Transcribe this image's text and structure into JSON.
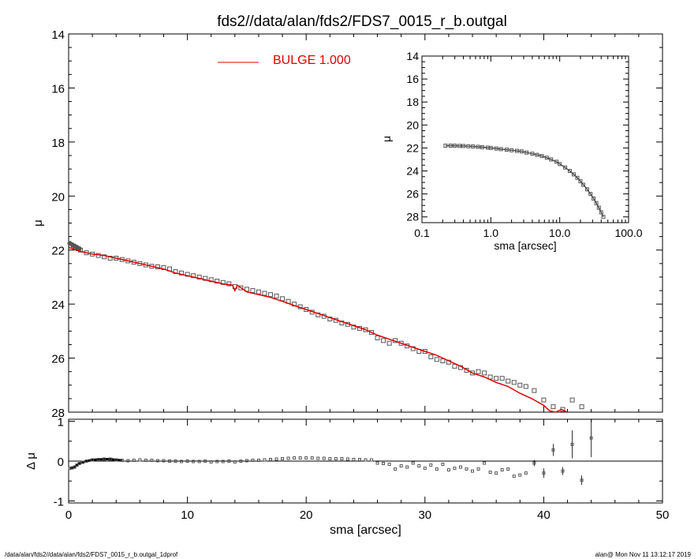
{
  "title": "fds2//data/alan/fds2/FDS7_0015_r_b.outgal",
  "footer": {
    "left": "/data/alan/fds2//data/alan/fds2/FDS7_0015_r_b.outgal_1dprof",
    "right": "alan@  Mon Nov 11 13:12:17 2019"
  },
  "colors": {
    "model": "#e00000",
    "data": "#555555",
    "axes": "#000000"
  },
  "chart_data": [
    {
      "type": "scatter",
      "name": "main",
      "xlabel": "",
      "ylabel": "μ",
      "xlim": [
        0,
        50
      ],
      "ylim": [
        28,
        14
      ],
      "y_inverted": true,
      "yticks": [
        14,
        16,
        18,
        20,
        22,
        24,
        26,
        28
      ],
      "ytick_labels": [
        "14",
        "16",
        "18",
        "20",
        "22",
        "24",
        "26",
        "28"
      ],
      "legend": {
        "label": "BULGE  1.000",
        "position": "top-center"
      },
      "series": [
        {
          "name": "data",
          "style": "squares",
          "x": [
            0.2,
            0.4,
            0.6,
            0.8,
            1.0,
            1.5,
            2.0,
            2.5,
            3.0,
            3.5,
            4.0,
            4.5,
            5.0,
            5.5,
            6.0,
            6.5,
            7.0,
            7.5,
            8.0,
            8.5,
            9.0,
            9.5,
            10.0,
            10.5,
            11.0,
            11.5,
            12.0,
            12.5,
            13.0,
            13.5,
            14.0,
            14.5,
            15.0,
            15.5,
            16.0,
            16.5,
            17.0,
            17.5,
            18.0,
            18.5,
            19.0,
            19.5,
            20.0,
            20.5,
            21.0,
            21.5,
            22.0,
            22.5,
            23.0,
            23.5,
            24.0,
            24.5,
            25.0,
            25.5,
            26.0,
            26.5,
            27.0,
            27.5,
            28.0,
            28.5,
            29.0,
            29.5,
            30.0,
            30.5,
            31.0,
            31.5,
            32.0,
            32.5,
            33.0,
            33.5,
            34.0,
            34.5,
            35.0,
            35.5,
            36.0,
            36.5,
            37.0,
            37.5,
            38.0,
            38.5,
            39.2,
            40.0,
            40.8,
            41.6,
            42.4,
            43.2
          ],
          "y": [
            21.85,
            21.85,
            21.9,
            21.95,
            22.0,
            22.1,
            22.15,
            22.2,
            22.25,
            22.3,
            22.3,
            22.35,
            22.4,
            22.45,
            22.5,
            22.55,
            22.6,
            22.62,
            22.65,
            22.7,
            22.8,
            22.85,
            22.9,
            22.95,
            23.0,
            23.05,
            23.1,
            23.15,
            23.2,
            23.25,
            23.35,
            23.4,
            23.45,
            23.5,
            23.55,
            23.6,
            23.65,
            23.7,
            23.8,
            23.9,
            24.0,
            24.1,
            24.2,
            24.3,
            24.4,
            24.45,
            24.55,
            24.6,
            24.7,
            24.75,
            24.85,
            24.9,
            24.95,
            25.05,
            25.25,
            25.35,
            25.45,
            25.35,
            25.45,
            25.55,
            25.65,
            25.75,
            25.75,
            25.95,
            26.05,
            26.1,
            26.15,
            26.3,
            26.35,
            26.45,
            26.55,
            26.5,
            26.55,
            26.7,
            26.75,
            26.75,
            26.85,
            26.9,
            27.0,
            27.05,
            27.2,
            27.55,
            27.8,
            27.9,
            27.55,
            27.8
          ]
        },
        {
          "name": "model",
          "style": "line",
          "x": [
            0,
            1,
            2,
            3,
            4,
            5,
            6,
            7,
            8,
            9,
            10,
            11,
            12,
            13,
            13.8,
            14.0,
            14.2,
            15,
            16,
            17,
            18,
            19,
            20,
            21,
            22,
            23,
            24,
            25,
            26,
            27,
            28,
            29,
            30,
            31,
            32,
            33,
            34,
            35,
            36,
            37,
            38,
            39,
            40,
            40.5,
            41.0,
            41.5,
            42.0
          ],
          "y": [
            21.9,
            22.05,
            22.15,
            22.2,
            22.3,
            22.4,
            22.5,
            22.6,
            22.7,
            22.85,
            22.95,
            23.05,
            23.15,
            23.25,
            23.3,
            23.5,
            23.3,
            23.55,
            23.65,
            23.75,
            23.9,
            24.05,
            24.2,
            24.35,
            24.5,
            24.65,
            24.8,
            24.95,
            25.15,
            25.3,
            25.45,
            25.6,
            25.75,
            25.9,
            26.1,
            26.3,
            26.55,
            26.7,
            26.9,
            27.05,
            27.3,
            27.5,
            27.75,
            27.95,
            28.1,
            27.9,
            28.2
          ]
        }
      ]
    },
    {
      "type": "scatter",
      "name": "inset",
      "xlabel": "sma [arcsec]",
      "ylabel": "μ",
      "xscale": "log",
      "xlim": [
        0.1,
        100
      ],
      "ylim": [
        28.5,
        14
      ],
      "y_inverted": true,
      "xticks": [
        0.1,
        1,
        10,
        100
      ],
      "xtick_labels": [
        "0.1",
        "1.0",
        "10.0",
        "100.0"
      ],
      "yticks": [
        14,
        16,
        18,
        20,
        22,
        24,
        26,
        28
      ],
      "ytick_labels": [
        "14",
        "16",
        "18",
        "20",
        "22",
        "24",
        "26",
        "28"
      ],
      "series": [
        {
          "name": "data",
          "style": "squares",
          "x": [
            0.22,
            0.26,
            0.3,
            0.35,
            0.4,
            0.47,
            0.55,
            0.65,
            0.75,
            0.9,
            1.0,
            1.2,
            1.4,
            1.7,
            2.0,
            2.4,
            2.8,
            3.3,
            4.0,
            4.7,
            5.5,
            6.5,
            7.5,
            9.0,
            10.0,
            12.0,
            14.0,
            16.0,
            18.0,
            20.0,
            22.0,
            25.0,
            28.0,
            31.0,
            34.0,
            37.0,
            40.0,
            43.0
          ],
          "y": [
            21.8,
            21.8,
            21.8,
            21.82,
            21.83,
            21.85,
            21.87,
            21.9,
            21.93,
            21.97,
            22.0,
            22.05,
            22.1,
            22.15,
            22.2,
            22.25,
            22.3,
            22.4,
            22.5,
            22.6,
            22.7,
            22.85,
            23.0,
            23.2,
            23.4,
            23.7,
            24.0,
            24.3,
            24.6,
            24.9,
            25.2,
            25.6,
            26.0,
            26.4,
            26.8,
            27.2,
            27.6,
            28.0
          ]
        }
      ]
    },
    {
      "type": "scatter",
      "name": "residual",
      "xlabel": "sma [arcsec]",
      "ylabel": "Δ μ",
      "xlim": [
        0,
        50
      ],
      "ylim": [
        -1.05,
        1.05
      ],
      "xticks": [
        0,
        10,
        20,
        30,
        40,
        50
      ],
      "xtick_labels": [
        "0",
        "10",
        "20",
        "30",
        "40",
        "50"
      ],
      "yticks": [
        -1,
        0,
        1
      ],
      "ytick_labels": [
        "-1",
        "0",
        "1"
      ],
      "series": [
        {
          "name": "dense",
          "style": "squares",
          "x": [
            0.1,
            0.3,
            0.5,
            0.7,
            0.9,
            1.2,
            1.5,
            2.0,
            2.5,
            3.0,
            3.5,
            4.0,
            4.5,
            5.0,
            5.5,
            6.0,
            6.5,
            7.0,
            7.5,
            8.0,
            8.5,
            9.0,
            9.5,
            10.0,
            10.5,
            11.0,
            11.5,
            12.0,
            12.5,
            13.0,
            13.5,
            14.0,
            14.5,
            15.0,
            15.5,
            16.0,
            16.5,
            17.0,
            17.5,
            18.0,
            18.5,
            19.0,
            19.5,
            20.0,
            20.5,
            21.0,
            21.5,
            22.0,
            22.5,
            23.0,
            23.5,
            24.0,
            24.5,
            25.0,
            25.5
          ],
          "y": [
            -0.18,
            -0.17,
            -0.15,
            -0.1,
            -0.06,
            -0.03,
            0.0,
            0.03,
            0.04,
            0.05,
            0.05,
            0.03,
            0.02,
            0.01,
            0.02,
            0.03,
            0.02,
            0.02,
            0.01,
            0.01,
            0.0,
            0.0,
            -0.01,
            0.0,
            -0.01,
            -0.01,
            0.0,
            -0.02,
            -0.01,
            -0.01,
            0.0,
            -0.02,
            0.0,
            0.01,
            0.02,
            0.02,
            0.03,
            0.04,
            0.05,
            0.06,
            0.07,
            0.08,
            0.08,
            0.08,
            0.08,
            0.07,
            0.07,
            0.06,
            0.06,
            0.06,
            0.05,
            0.04,
            0.04,
            0.03,
            0.03
          ]
        },
        {
          "name": "sparse",
          "style": "squares",
          "x": [
            26.0,
            26.5,
            27.0,
            27.5,
            28.0,
            28.5,
            29.0,
            29.5,
            30.0,
            30.5,
            31.0,
            31.5,
            32.0,
            32.5,
            33.0,
            33.5,
            34.0,
            34.5,
            35.0,
            35.5,
            36.0,
            36.5,
            37.0,
            37.5,
            38.0,
            38.5
          ],
          "y": [
            -0.05,
            -0.06,
            -0.08,
            -0.2,
            -0.12,
            -0.15,
            -0.05,
            -0.12,
            -0.18,
            -0.1,
            -0.2,
            -0.08,
            -0.22,
            -0.18,
            -0.15,
            -0.2,
            -0.25,
            -0.2,
            -0.05,
            -0.28,
            -0.3,
            -0.22,
            -0.2,
            -0.38,
            -0.35,
            -0.3
          ]
        },
        {
          "name": "errorbars",
          "style": "squares-with-errorbars",
          "x": [
            39.2,
            40.0,
            40.8,
            41.6,
            42.4,
            43.2,
            44.0
          ],
          "y": [
            -0.05,
            -0.3,
            0.28,
            -0.25,
            0.42,
            -0.48,
            0.58
          ],
          "err": [
            0.08,
            0.12,
            0.15,
            0.1,
            0.35,
            0.12,
            0.48
          ]
        }
      ]
    }
  ]
}
